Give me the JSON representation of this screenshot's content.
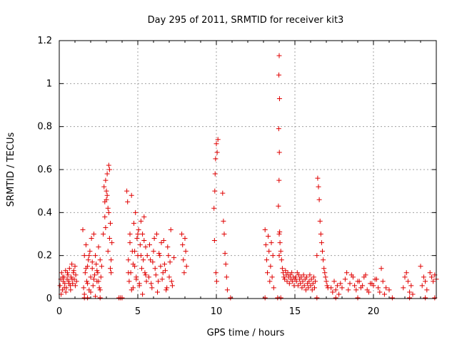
{
  "colors": {
    "series": "#e00000",
    "grid": "#a0a0a0",
    "axis": "#000000"
  },
  "chart_data": {
    "type": "scatter",
    "title": "Day 295 of 2011, SRMTID for receiver kit3",
    "xlabel": "GPS time / hours",
    "ylabel": "SRMTID / TECUs",
    "xlim": [
      0,
      24
    ],
    "ylim": [
      0,
      1.2
    ],
    "x_ticks": [
      0,
      5,
      10,
      15,
      20
    ],
    "x_tick_labels": [
      "0",
      "5",
      "10",
      "15",
      "20"
    ],
    "y_ticks": [
      0,
      0.2,
      0.4,
      0.6,
      0.8,
      1,
      1.2
    ],
    "y_tick_labels": [
      "0",
      "0.2",
      "0.4",
      "0.6",
      "0.8",
      "1",
      "1.2"
    ],
    "grid": true,
    "marker": "+",
    "series": [
      {
        "name": "SRMTID",
        "x": [
          0.05,
          0.1,
          0.15,
          0.2,
          0.25,
          0.3,
          0.35,
          0.4,
          0.45,
          0.5,
          0.55,
          0.6,
          0.65,
          0.7,
          0.75,
          0.8,
          0.85,
          0.9,
          0.95,
          1.0,
          1.05,
          1.1,
          0.12,
          0.22,
          0.32,
          0.42,
          0.52,
          0.62,
          0.72,
          0.82,
          0.92,
          1.02,
          1.5,
          1.55,
          1.6,
          1.65,
          1.7,
          1.75,
          1.8,
          1.85,
          1.9,
          1.95,
          2.0,
          2.05,
          2.1,
          2.15,
          2.2,
          2.25,
          2.3,
          2.35,
          2.4,
          2.45,
          2.5,
          2.55,
          2.6,
          2.65,
          2.7,
          1.6,
          1.7,
          1.8,
          1.9,
          2.0,
          2.1,
          2.2,
          2.3,
          2.4,
          2.5,
          2.6,
          2.8,
          2.85,
          2.9,
          2.95,
          3.0,
          3.05,
          3.1,
          3.15,
          3.2,
          3.25,
          3.3,
          3.35,
          2.9,
          3.0,
          3.1,
          3.2,
          3.3,
          2.95,
          3.05,
          3.15,
          3.25,
          4.3,
          4.35,
          4.4,
          4.45,
          4.5,
          4.55,
          4.6,
          4.65,
          4.7,
          4.75,
          4.8,
          4.85,
          4.9,
          4.95,
          5.0,
          5.05,
          5.1,
          5.15,
          5.2,
          5.25,
          5.3,
          5.35,
          5.4,
          5.45,
          5.5,
          5.55,
          5.6,
          4.4,
          4.5,
          4.6,
          4.7,
          4.8,
          4.9,
          5.0,
          5.1,
          5.2,
          5.3,
          5.4,
          5.5,
          5.7,
          5.8,
          5.9,
          6.0,
          6.1,
          6.2,
          6.3,
          6.4,
          6.5,
          6.6,
          6.7,
          6.8,
          6.9,
          7.0,
          7.1,
          7.2,
          7.3,
          5.75,
          5.85,
          5.95,
          6.05,
          6.15,
          6.25,
          6.35,
          6.45,
          6.55,
          6.65,
          6.75,
          6.85,
          6.95,
          7.05,
          7.15,
          7.8,
          7.85,
          7.9,
          7.95,
          8.0,
          8.05,
          8.1,
          9.85,
          9.9,
          9.95,
          10.0,
          10.05,
          10.1,
          9.88,
          9.92,
          9.97,
          10.02,
          10.4,
          10.45,
          10.5,
          10.55,
          10.6,
          10.65,
          10.7,
          13.1,
          13.15,
          13.2,
          13.25,
          13.3,
          13.35,
          13.4,
          13.45,
          13.5,
          13.55,
          13.6,
          13.65,
          13.95,
          14.0,
          14.05,
          14.1,
          14.15,
          14.2,
          14.25,
          14.3,
          14.35,
          14.4,
          14.45,
          14.5,
          14.55,
          14.6,
          14.65,
          14.7,
          14.75,
          14.8,
          14.85,
          14.9,
          14.95,
          15.0,
          14.0,
          13.98,
          14.02,
          13.97,
          14.01,
          13.99,
          14.03,
          14.0,
          15.05,
          15.1,
          15.15,
          15.2,
          15.25,
          15.3,
          15.35,
          15.4,
          15.45,
          15.5,
          15.55,
          15.6,
          15.65,
          15.7,
          15.75,
          15.8,
          15.85,
          15.9,
          15.95,
          16.0,
          16.05,
          16.1,
          16.15,
          16.2,
          16.25,
          16.3,
          16.4,
          16.45,
          16.5,
          16.55,
          16.6,
          16.65,
          16.7,
          16.75,
          16.8,
          16.85,
          16.9,
          16.95,
          17.0,
          17.05,
          17.1,
          17.3,
          17.4,
          17.5,
          17.6,
          17.7,
          17.8,
          17.9,
          18.0,
          18.2,
          18.4,
          18.6,
          18.8,
          19.0,
          19.2,
          19.4,
          19.6,
          19.8,
          20.0,
          20.2,
          20.4,
          20.6,
          20.8,
          21.0,
          18.3,
          18.5,
          18.7,
          18.9,
          19.1,
          19.3,
          19.5,
          19.7,
          19.9,
          20.1,
          20.3,
          20.5,
          20.7,
          21.9,
          22.0,
          22.1,
          22.2,
          22.3,
          22.4,
          22.5,
          23.0,
          23.1,
          23.2,
          23.3,
          23.4,
          23.6,
          23.7,
          23.8,
          23.9,
          24.0,
          1.6,
          1.8,
          2.6,
          3.8,
          3.9,
          4.0,
          10.9,
          13.1,
          13.9,
          14.1,
          16.4,
          17.6,
          19.0,
          21.2,
          22.3,
          23.3,
          23.9
        ],
        "y": [
          0.06,
          0.09,
          0.12,
          0.04,
          0.08,
          0.1,
          0.07,
          0.13,
          0.05,
          0.09,
          0.11,
          0.08,
          0.14,
          0.06,
          0.1,
          0.16,
          0.07,
          0.12,
          0.09,
          0.15,
          0.11,
          0.08,
          0.02,
          0.1,
          0.05,
          0.03,
          0.12,
          0.07,
          0.04,
          0.09,
          0.13,
          0.06,
          0.32,
          0.05,
          0.2,
          0.12,
          0.25,
          0.08,
          0.15,
          0.18,
          0.04,
          0.22,
          0.1,
          0.28,
          0.14,
          0.06,
          0.3,
          0.11,
          0.2,
          0.16,
          0.08,
          0.12,
          0.24,
          0.05,
          0.18,
          0.1,
          0.15,
          0.02,
          0.14,
          0.07,
          0.2,
          0.03,
          0.17,
          0.09,
          0.01,
          0.13,
          0.08,
          0.04,
          0.3,
          0.52,
          0.38,
          0.55,
          0.46,
          0.58,
          0.42,
          0.62,
          0.28,
          0.35,
          0.12,
          0.26,
          0.45,
          0.5,
          0.22,
          0.6,
          0.18,
          0.33,
          0.48,
          0.4,
          0.14,
          0.5,
          0.45,
          0.18,
          0.08,
          0.3,
          0.12,
          0.48,
          0.22,
          0.05,
          0.35,
          0.15,
          0.4,
          0.1,
          0.28,
          0.2,
          0.32,
          0.06,
          0.25,
          0.36,
          0.14,
          0.3,
          0.18,
          0.38,
          0.12,
          0.24,
          0.08,
          0.2,
          0.12,
          0.26,
          0.04,
          0.16,
          0.22,
          0.09,
          0.3,
          0.07,
          0.2,
          0.02,
          0.27,
          0.11,
          0.1,
          0.18,
          0.05,
          0.22,
          0.14,
          0.3,
          0.08,
          0.2,
          0.26,
          0.12,
          0.16,
          0.04,
          0.24,
          0.1,
          0.32,
          0.06,
          0.19,
          0.25,
          0.07,
          0.17,
          0.28,
          0.11,
          0.03,
          0.21,
          0.15,
          0.09,
          0.27,
          0.13,
          0.05,
          0.2,
          0.17,
          0.08,
          0.3,
          0.25,
          0.18,
          0.12,
          0.28,
          0.22,
          0.15,
          0.42,
          0.5,
          0.65,
          0.72,
          0.68,
          0.74,
          0.27,
          0.58,
          0.12,
          0.08,
          0.49,
          0.36,
          0.3,
          0.21,
          0.16,
          0.1,
          0.04,
          0.32,
          0.25,
          0.18,
          0.12,
          0.29,
          0.22,
          0.08,
          0.15,
          0.26,
          0.1,
          0.2,
          0.05,
          0.43,
          0.3,
          0.26,
          0.22,
          0.18,
          0.14,
          0.12,
          0.1,
          0.09,
          0.13,
          0.11,
          0.08,
          0.12,
          0.1,
          0.07,
          0.11,
          0.09,
          0.12,
          0.08,
          0.1,
          0.06,
          0.09,
          1.13,
          1.04,
          0.93,
          0.79,
          0.68,
          0.55,
          0.31,
          0.2,
          0.1,
          0.08,
          0.12,
          0.06,
          0.11,
          0.09,
          0.07,
          0.1,
          0.05,
          0.08,
          0.11,
          0.06,
          0.09,
          0.04,
          0.1,
          0.07,
          0.05,
          0.08,
          0.11,
          0.06,
          0.09,
          0.04,
          0.07,
          0.1,
          0.05,
          0.08,
          0.2,
          0.56,
          0.52,
          0.46,
          0.36,
          0.3,
          0.26,
          0.22,
          0.18,
          0.14,
          0.12,
          0.1,
          0.08,
          0.06,
          0.05,
          0.05,
          0.03,
          0.08,
          0.04,
          0.06,
          0.02,
          0.07,
          0.05,
          0.09,
          0.04,
          0.11,
          0.06,
          0.08,
          0.05,
          0.1,
          0.04,
          0.07,
          0.06,
          0.09,
          0.03,
          0.08,
          0.05,
          0.04,
          0.12,
          0.07,
          0.1,
          0.04,
          0.08,
          0.06,
          0.11,
          0.03,
          0.07,
          0.09,
          0.05,
          0.14,
          0.02,
          0.05,
          0.1,
          0.12,
          0.08,
          0.03,
          0.06,
          0.02,
          0.15,
          0.06,
          0.1,
          0.08,
          0.04,
          0.12,
          0.1,
          0.08,
          0.11,
          0.09,
          0.0,
          0.0,
          0.0,
          0.0,
          0.0,
          0.0,
          0.0,
          0.0,
          0.0,
          0.0,
          0.0,
          0.0,
          0.0,
          0.0,
          0.0,
          0.0,
          0.0
        ]
      }
    ]
  }
}
